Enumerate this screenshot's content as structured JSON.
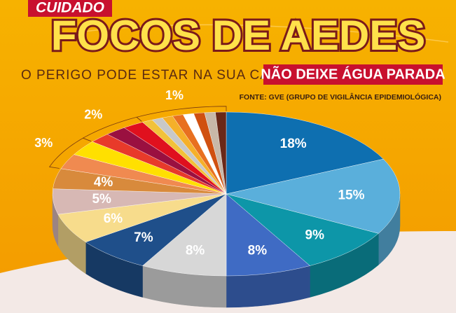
{
  "chart_data": {
    "type": "pie",
    "kicker": "CUIDADO",
    "title": "FOCOS DE AEDES",
    "subtitle": "O PERIGO PODE ESTAR NA SUA CASA",
    "tagline": "NÃO DEIXE ÁGUA PARADA",
    "source": "FONTE: GVE (GRUPO DE VIGILÂNCIA EPIDEMIOLÓGICA)",
    "categories": [
      null,
      null,
      null,
      null,
      null,
      null,
      null,
      null,
      null,
      null,
      null,
      null,
      null,
      null,
      null,
      null,
      null,
      null,
      null,
      null,
      null,
      null
    ],
    "values": [
      18,
      15,
      9,
      8,
      8,
      7,
      6,
      5,
      4,
      3,
      3,
      2,
      2,
      2,
      1,
      1,
      1,
      1,
      1,
      1,
      1,
      1
    ],
    "value_labels": [
      "18%",
      "15%",
      "9%",
      "8%",
      "8%",
      "7%",
      "6%",
      "5%",
      "4%",
      "3%",
      null,
      "2%",
      null,
      null,
      "1%",
      null,
      null,
      null,
      null,
      null,
      null,
      null
    ],
    "colors": [
      "#0e6fb0",
      "#5aafdb",
      "#0d96a8",
      "#3f6bc4",
      "#d7d7d7",
      "#1f4f8a",
      "#f7dc8c",
      "#d7b8b4",
      "#d88a3c",
      "#f08a50",
      "#ffe000",
      "#e83a2a",
      "#9a1040",
      "#e0101e",
      "#f2c23a",
      "#c8c8c8",
      "#f5b02a",
      "#e87020",
      "#ffffff",
      "#d05010",
      "#c8b8a8",
      "#6a2818"
    ]
  }
}
